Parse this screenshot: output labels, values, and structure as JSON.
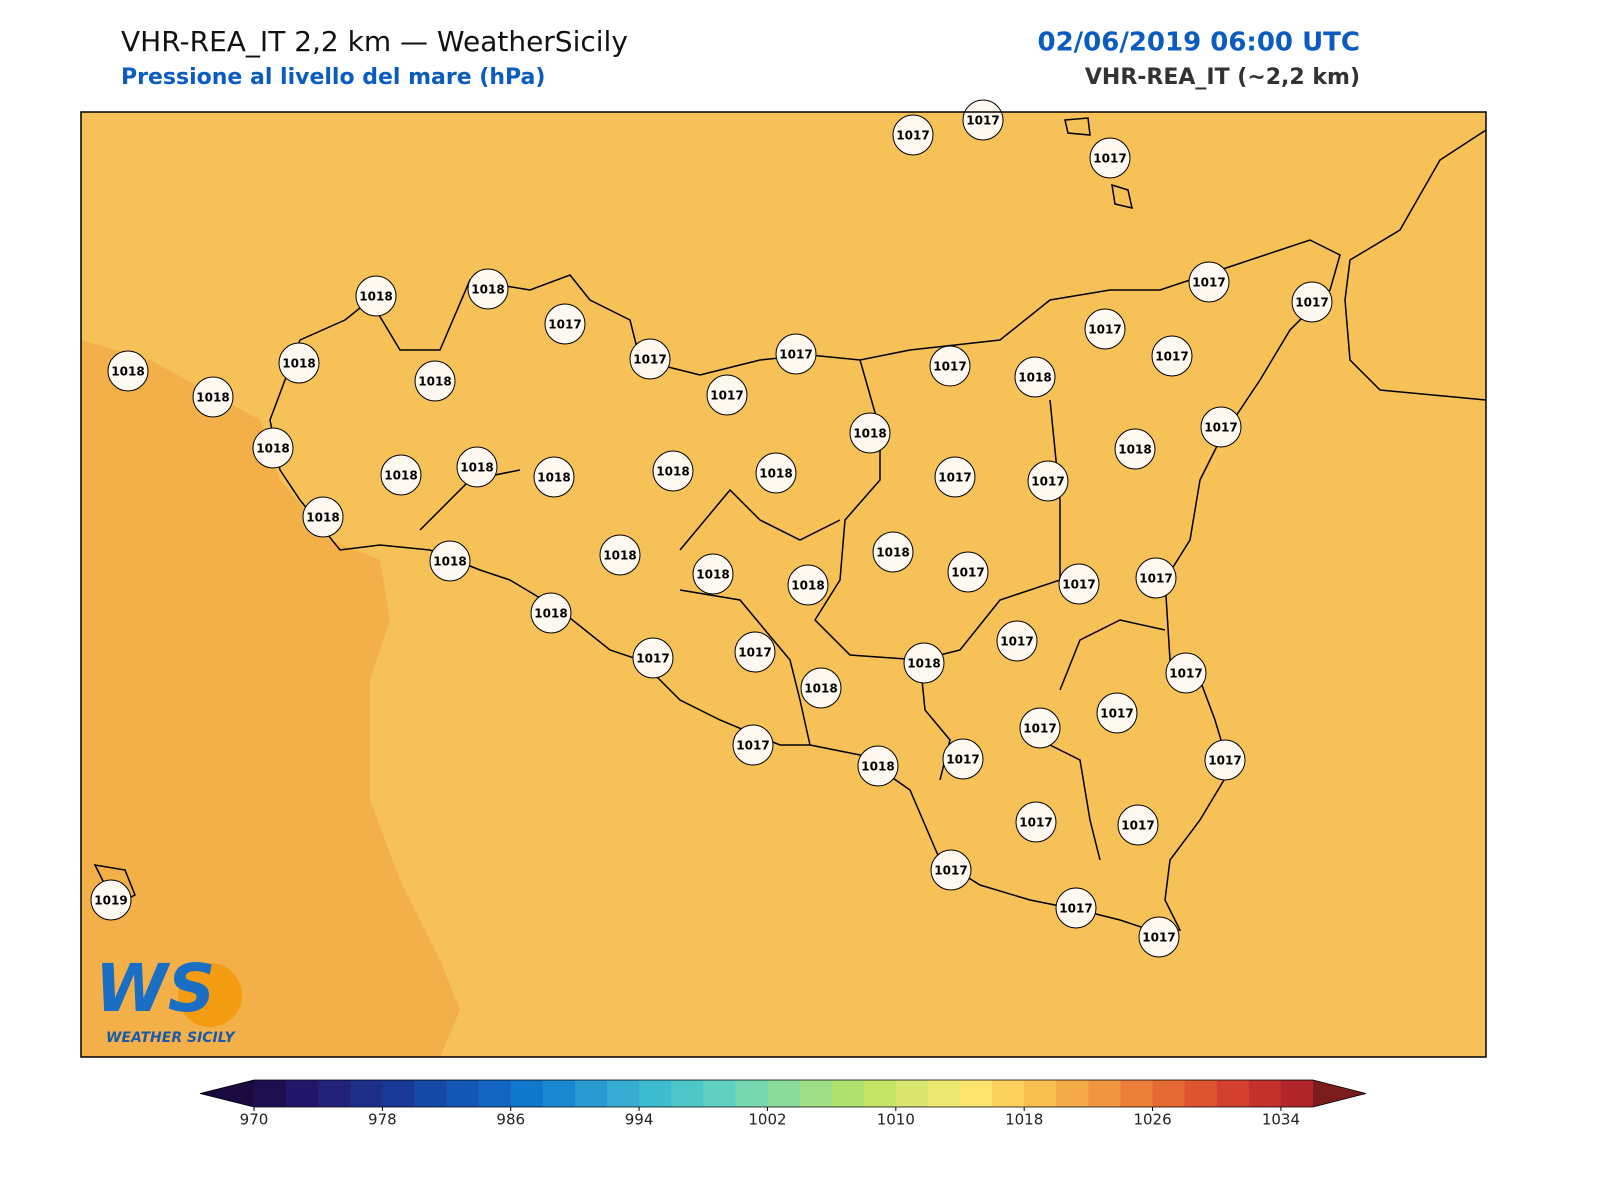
{
  "header": {
    "title": "VHR-REA_IT 2,2 km — WeatherSicily",
    "subtitle": "Pressione al livello del mare (hPa)",
    "datetime": "02/06/2019 06:00 UTC",
    "model": "VHR-REA_IT (~2,2 km)"
  },
  "map": {
    "land_color": "#f6c156",
    "sea_color": "#f3b048",
    "coast_color": "#000000"
  },
  "stations": [
    1017,
    1017,
    1017,
    1018,
    1018,
    1017,
    1017,
    1017,
    1017,
    1017,
    1017,
    1017,
    1017,
    1017,
    1018,
    1018,
    1018,
    1018,
    1018,
    1018,
    1018,
    1018,
    1018,
    1018,
    1018,
    1018,
    1017,
    1018,
    1017,
    1017,
    1018,
    1018,
    1018,
    1018,
    1018,
    1018,
    1017,
    1017,
    1017,
    1018,
    1017,
    1017,
    1018,
    1018,
    1017,
    1017,
    1017,
    1017,
    1017,
    1017,
    1018,
    1017,
    1017,
    1017,
    1017,
    1017,
    1017,
    1019
  ],
  "colorbar": {
    "min": 970,
    "max": 1036,
    "step": 2,
    "ticks": [
      970,
      978,
      986,
      994,
      1002,
      1010,
      1018,
      1026,
      1034
    ],
    "under_color": "#1a0a40",
    "over_color": "#7a1c1c",
    "colors": [
      "#1e1050",
      "#22166a",
      "#1f2278",
      "#1c2e88",
      "#183a96",
      "#1648a6",
      "#1456b4",
      "#1266c2",
      "#0f78cc",
      "#1a88d0",
      "#2a9ad2",
      "#36acd2",
      "#3ebcd0",
      "#4ec6c8",
      "#62d0c0",
      "#76d8b0",
      "#8adc9a",
      "#9ede84",
      "#b0e270",
      "#c4e466",
      "#d8e670",
      "#eae870",
      "#fae46c",
      "#fcd25c",
      "#f8be50",
      "#f4aa46",
      "#f09640",
      "#ec803a",
      "#e66a34",
      "#de5430",
      "#d4402e",
      "#c4302c",
      "#b0262a"
    ]
  },
  "logo": {
    "letters": "WS",
    "name": "WEATHER SICILY"
  }
}
